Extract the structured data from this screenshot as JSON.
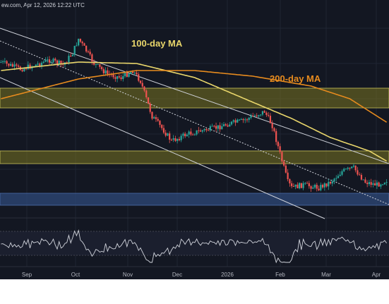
{
  "header": {
    "text": "ew.com, Apr 12, 2026 12:22 UTC"
  },
  "colors": {
    "background": "#131722",
    "up": "#26a69a",
    "down": "#ef5350",
    "ma100": "#e9d66b",
    "ma200": "#e78b1e",
    "zone_yellow": "#7a7520",
    "zone_blue": "#2f4a79",
    "channel": "#d1d4dc",
    "rsi": "#d1d4dc"
  },
  "chart_data": [
    {
      "type": "candlestick",
      "title": "",
      "annotations": [
        {
          "id": "ma100",
          "text": "100-day MA"
        },
        {
          "id": "ma200",
          "text": "200-day MA"
        }
      ],
      "x_ticks": [
        "Sep",
        "Oct",
        "Nov",
        "Dec",
        "2026",
        "Feb",
        "Mar",
        "Apr"
      ],
      "zones": [
        {
          "kind": "resistance",
          "color": "yellow",
          "band_index": 0
        },
        {
          "kind": "resistance",
          "color": "yellow",
          "band_index": 1
        },
        {
          "kind": "support",
          "color": "blue",
          "band_index": 2
        }
      ],
      "series": [
        {
          "name": "100-day MA"
        },
        {
          "name": "200-day MA"
        }
      ],
      "grid": true
    },
    {
      "type": "line",
      "title": "",
      "grid": true
    }
  ]
}
